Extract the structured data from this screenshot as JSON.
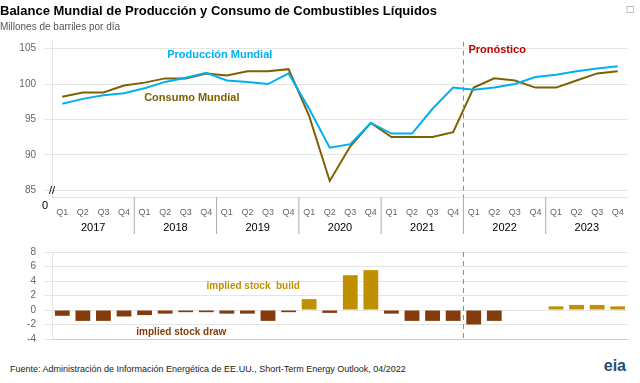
{
  "chart_data": [
    {
      "type": "line",
      "title": "Balance Mundial de Producción y Consumo de Combustibles Líquidos",
      "subtitle": "Millones de barriles por día",
      "categories": [
        "Q1",
        "Q2",
        "Q3",
        "Q4",
        "Q1",
        "Q2",
        "Q3",
        "Q4",
        "Q1",
        "Q2",
        "Q3",
        "Q4",
        "Q1",
        "Q2",
        "Q3",
        "Q4",
        "Q1",
        "Q2",
        "Q3",
        "Q4",
        "Q1",
        "Q2",
        "Q3",
        "Q4",
        "Q1",
        "Q2",
        "Q3",
        "Q4"
      ],
      "groups": [
        {
          "label": "2017",
          "size": 4
        },
        {
          "label": "2018",
          "size": 4
        },
        {
          "label": "2019",
          "size": 4
        },
        {
          "label": "2020",
          "size": 4
        },
        {
          "label": "2021",
          "size": 4
        },
        {
          "label": "2022",
          "size": 4
        },
        {
          "label": "2023",
          "size": 4
        }
      ],
      "series": [
        {
          "name": "Producción Mundial",
          "color": "#00b0f0",
          "values": [
            97.2,
            97.9,
            98.4,
            98.7,
            99.4,
            100.3,
            100.9,
            101.6,
            100.5,
            100.3,
            100.0,
            101.5,
            96.5,
            91.0,
            91.5,
            94.5,
            93.0,
            93.0,
            96.5,
            99.5,
            99.2,
            99.5,
            100.0,
            101.0,
            101.3,
            101.8,
            102.2,
            102.5
          ]
        },
        {
          "name": "Consumo Mundial",
          "color": "#7f6000",
          "values": [
            98.2,
            98.8,
            98.8,
            99.8,
            100.2,
            100.8,
            100.8,
            101.5,
            101.2,
            101.8,
            101.8,
            102.1,
            95.5,
            86.3,
            91.2,
            94.5,
            92.5,
            92.5,
            92.5,
            93.2,
            99.5,
            100.8,
            100.5,
            99.5,
            99.5,
            100.5,
            101.5,
            101.8
          ]
        }
      ],
      "ylim": [
        84,
        106
      ],
      "yticks": [
        85,
        90,
        95,
        100,
        105
      ],
      "grid": true,
      "annotations": [
        {
          "text": "Pronóstico",
          "color": "#c00000"
        },
        {
          "x": 19.5,
          "line_style": "dashed",
          "color": "#888888"
        },
        {
          "text": "//"
        },
        {
          "text": "0"
        },
        {
          "text": "□",
          "color": "#888888"
        }
      ]
    },
    {
      "type": "bar",
      "categories": [
        "Q1",
        "Q2",
        "Q3",
        "Q4",
        "Q1",
        "Q2",
        "Q3",
        "Q4",
        "Q1",
        "Q2",
        "Q3",
        "Q4",
        "Q1",
        "Q2",
        "Q3",
        "Q4",
        "Q1",
        "Q2",
        "Q3",
        "Q4",
        "Q1",
        "Q2",
        "Q3",
        "Q4",
        "Q1",
        "Q2",
        "Q3",
        "Q4"
      ],
      "values": [
        -0.8,
        -1.5,
        -1.5,
        -0.9,
        -0.7,
        -0.5,
        -0.3,
        -0.3,
        -0.5,
        -0.5,
        -1.5,
        -0.3,
        1.5,
        -0.4,
        4.8,
        5.5,
        -0.5,
        -1.5,
        -1.5,
        -1.5,
        -2.0,
        -1.5,
        0.0,
        0.0,
        0.5,
        0.7,
        0.7,
        0.5
      ],
      "colors": [
        "#843c0c",
        "#843c0c",
        "#843c0c",
        "#843c0c",
        "#843c0c",
        "#843c0c",
        "#843c0c",
        "#843c0c",
        "#843c0c",
        "#843c0c",
        "#843c0c",
        "#843c0c",
        "#bf9000",
        "#843c0c",
        "#bf9000",
        "#bf9000",
        "#843c0c",
        "#843c0c",
        "#843c0c",
        "#843c0c",
        "#843c0c",
        "#843c0c",
        "#bf9000",
        "#bf9000",
        "#bf9000",
        "#bf9000",
        "#bf9000",
        "#bf9000"
      ],
      "ylim": [
        -4,
        8
      ],
      "yticks": [
        -4,
        -2,
        0,
        2,
        4,
        6,
        8
      ],
      "grid": true,
      "tick_labels": "y",
      "annotations": [
        {
          "text": "implied stock  build",
          "color": "#bf9000"
        },
        {
          "text": "implied stock draw",
          "color": "#843c0c"
        },
        {
          "x": 19.5,
          "line_style": "dashed",
          "color": "#888888"
        },
        {
          "text": "eia",
          "color": "#1f4e79"
        }
      ],
      "source": "Fuente: Administración de Información Energética de EE.UU., Short-Term Energy Outlook, 04/2022"
    }
  ]
}
